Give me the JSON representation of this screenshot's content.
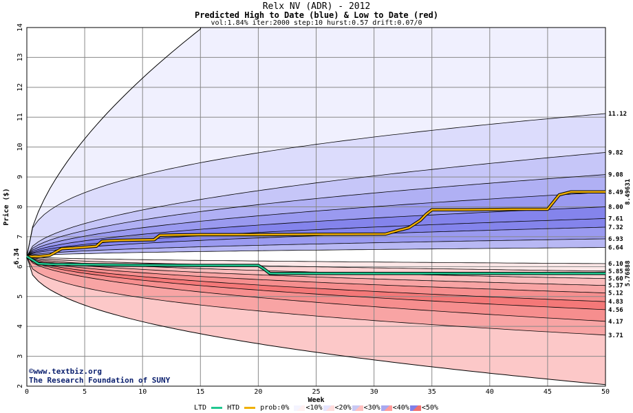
{
  "chart_data": {
    "type": "area",
    "title": "Relx NV (ADR) - 2012",
    "subtitle": "Predicted High to Date (blue) &  Low to Date (red)",
    "params": "vol:1.84% iter:2000 step:10 hurst:0.57 drift:0.07/0",
    "xlabel": "Week",
    "ylabel": "Price ($)",
    "xlim": [
      0,
      50
    ],
    "ylim": [
      2,
      14
    ],
    "x_ticks": [
      "0",
      "5",
      "10",
      "15",
      "20",
      "25",
      "30",
      "35",
      "40",
      "45",
      "50"
    ],
    "y_ticks": [
      "2",
      "3",
      "4",
      "5",
      "6",
      "7",
      "8",
      "9",
      "10",
      "11",
      "12",
      "13",
      "14"
    ],
    "grid": true,
    "start_price": 6.34,
    "start_label": "6.34",
    "high_bands_final": [
      11.12,
      9.82,
      9.08,
      8.49,
      8.0,
      7.61,
      7.32,
      6.93,
      6.64
    ],
    "low_bands_final": [
      6.1,
      5.85,
      5.6,
      5.37,
      5.12,
      4.83,
      4.56,
      4.17,
      3.71
    ],
    "right_labels": [
      "11.12",
      "9.82",
      "9.08",
      "8.49",
      "8.00",
      "7.61",
      "7.32",
      "6.93",
      "6.64",
      "6.10",
      "5.85",
      "5.60",
      "5.37",
      "5.12",
      "4.83",
      "4.56",
      "4.17",
      "3.71"
    ],
    "series": [
      {
        "name": "HTD",
        "color": "#f0b000",
        "x": [
          0,
          1,
          2,
          3,
          4,
          6,
          6.5,
          8,
          11,
          11.5,
          15,
          20,
          25,
          31,
          32,
          33,
          34,
          34.5,
          35,
          38,
          42,
          45,
          46,
          47,
          50
        ],
        "values": [
          6.34,
          6.34,
          6.38,
          6.6,
          6.62,
          6.68,
          6.85,
          6.88,
          6.9,
          7.05,
          7.07,
          7.07,
          7.08,
          7.09,
          7.2,
          7.3,
          7.55,
          7.75,
          7.9,
          7.9,
          7.92,
          7.92,
          8.4,
          8.5,
          8.5
        ]
      },
      {
        "name": "LTD",
        "color": "#20c890",
        "x": [
          0,
          1,
          2,
          5,
          10,
          15,
          20,
          20.5,
          21,
          25,
          30,
          40,
          50
        ],
        "values": [
          6.34,
          6.1,
          6.08,
          6.07,
          6.05,
          6.04,
          6.04,
          5.92,
          5.77,
          5.77,
          5.77,
          5.77,
          5.77
        ]
      }
    ],
    "end_labels": [
      {
        "text": "8.49631",
        "color": "#a07800"
      },
      {
        "text": "5.76888",
        "color": "#009060"
      }
    ],
    "legend": {
      "ltd_label": "LTD",
      "htd_label": "HTD",
      "prob_label": "prob:0%",
      "items": [
        "<10%",
        "<20%",
        "<30%",
        "<40%",
        "<50%"
      ],
      "colors": [
        "#f4f4ff",
        "#e4e4ff",
        "#c8c8f4",
        "#a8a8f0",
        "#8080e8"
      ],
      "red_colors": [
        "#fff0f0",
        "#ffdcdc",
        "#ffc0c0",
        "#ff9c9c",
        "#f07070"
      ]
    },
    "watermark": [
      "©www.textbiz.org",
      "The Research Foundation of SUNY"
    ]
  }
}
